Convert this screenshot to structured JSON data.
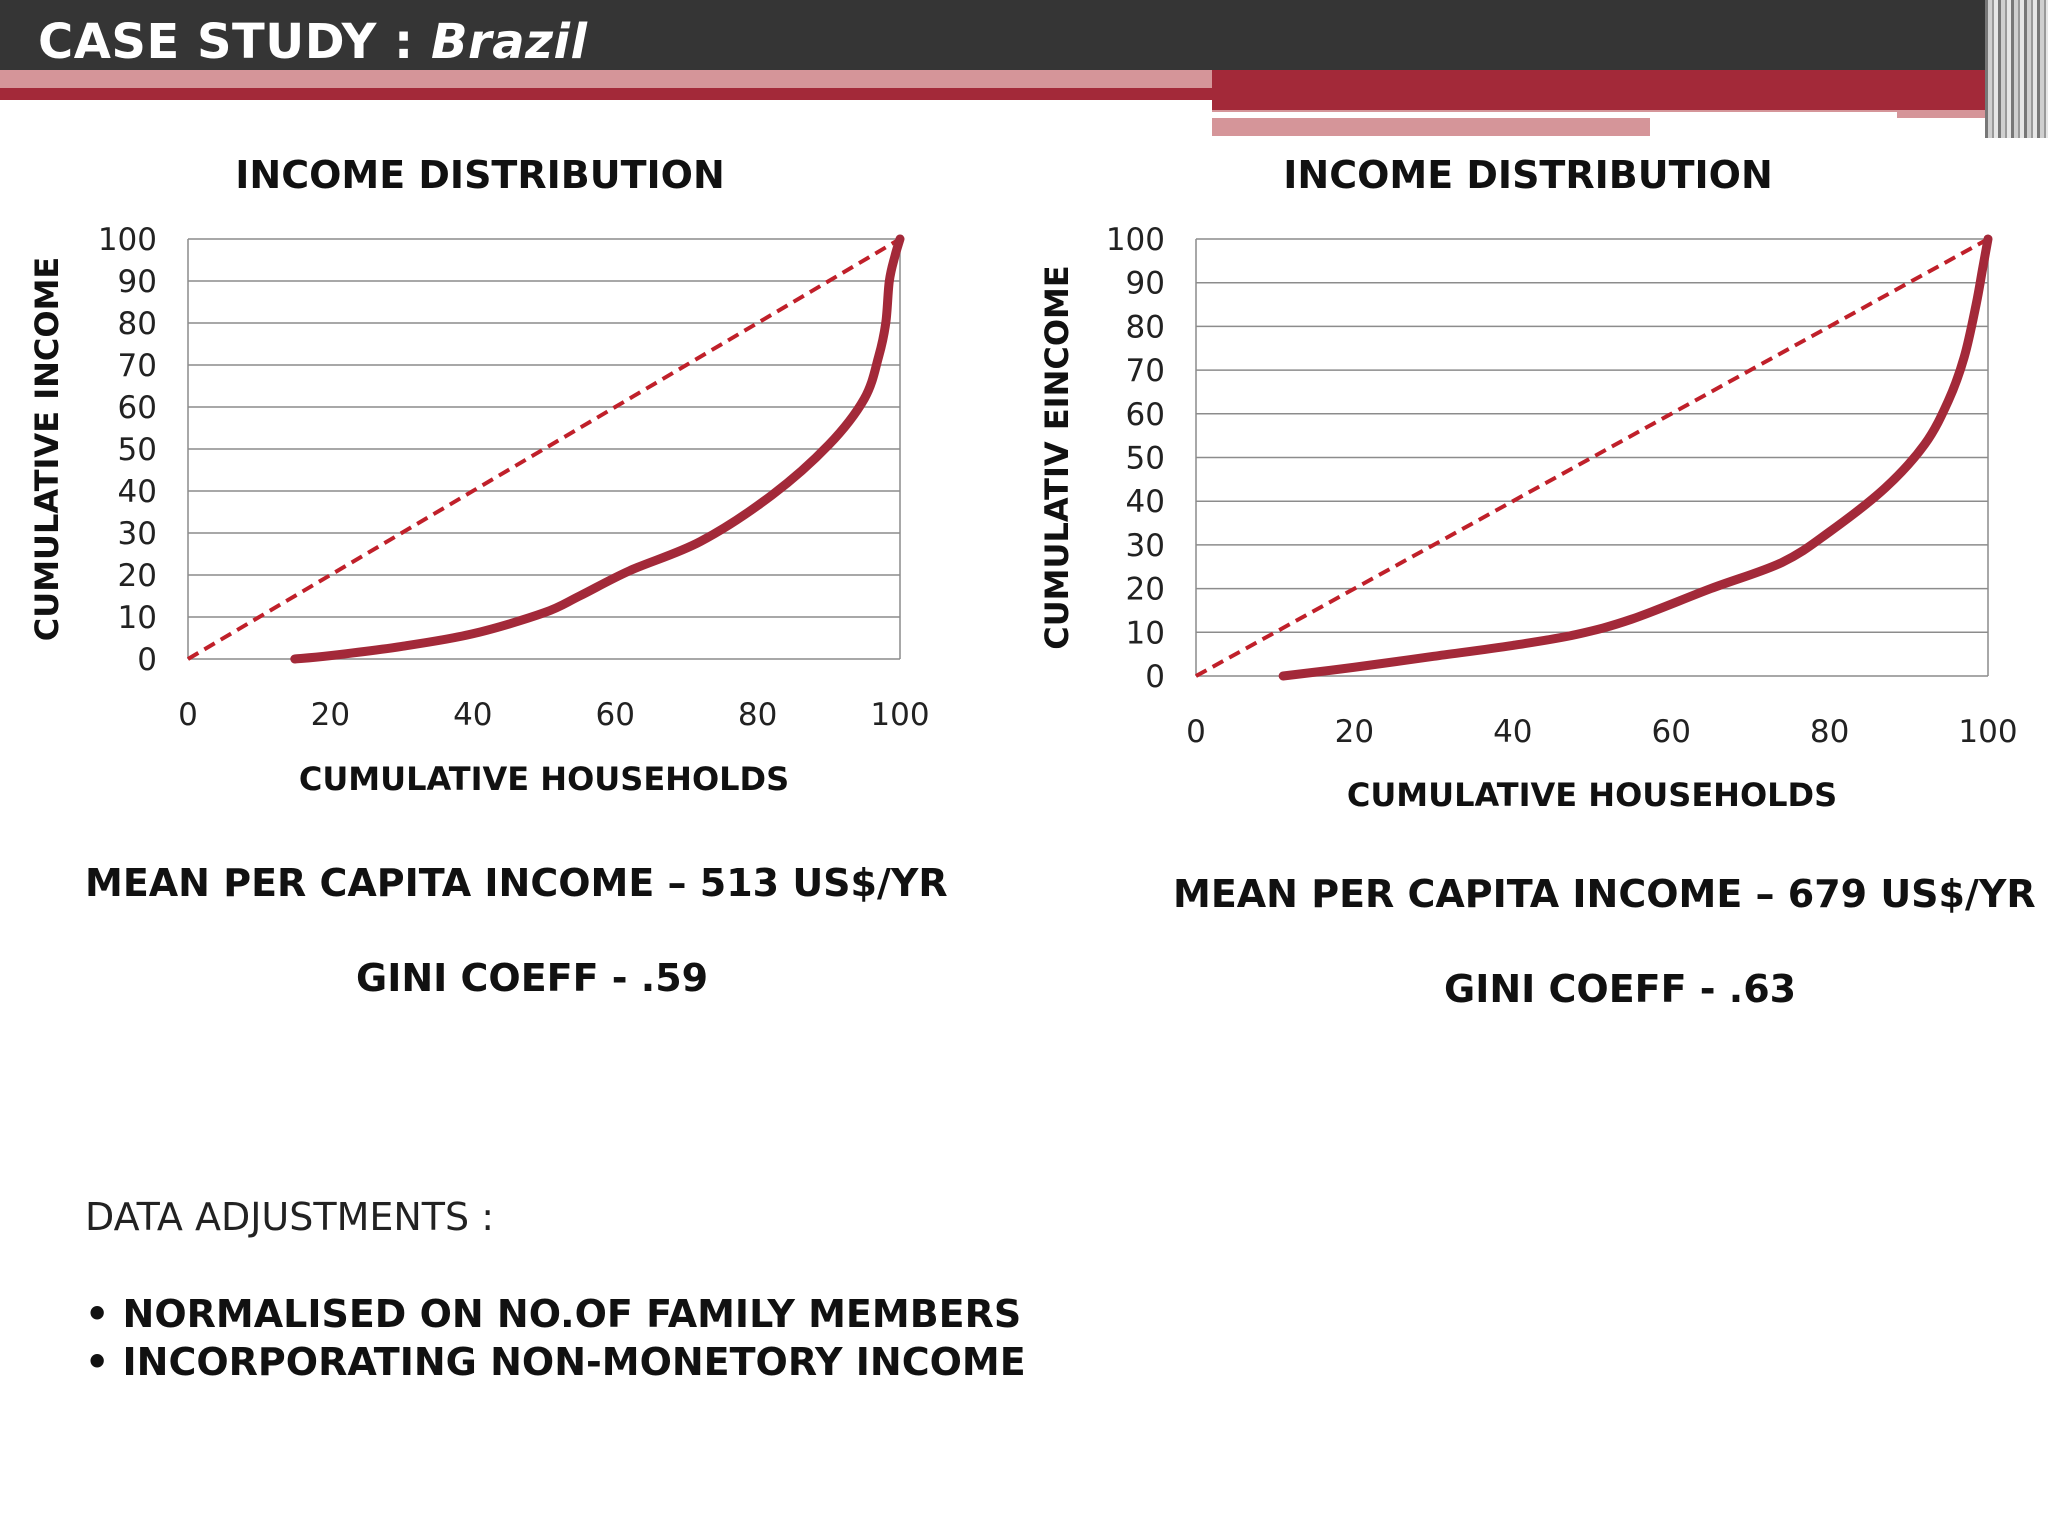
{
  "header": {
    "title_prefix": "CASE STUDY : ",
    "title_subject": "Brazil",
    "colors": {
      "bar": "#353535",
      "accent": "#a32939",
      "accent_light": "#d59599"
    }
  },
  "charts": [
    {
      "title": "INCOME DISTRIBUTION",
      "stats": {
        "mean_income": "MEAN PER CAPITA INCOME – 513 US$/YR",
        "gini": "GINI COEFF - .59"
      }
    },
    {
      "title": "INCOME DISTRIBUTION",
      "stats": {
        "mean_income": "MEAN PER CAPITA INCOME – 679 US$/YR",
        "gini": "GINI COEFF - .63"
      }
    }
  ],
  "chart_data": [
    {
      "type": "line",
      "title": "INCOME DISTRIBUTION",
      "xlabel": "CUMULATIVE HOUSEHOLDS",
      "ylabel": "CUMULATIVE INCOME",
      "xlim": [
        0,
        100
      ],
      "ylim": [
        0,
        100
      ],
      "xticks": [
        0,
        20,
        40,
        60,
        80,
        100
      ],
      "yticks": [
        0,
        10,
        20,
        30,
        40,
        50,
        60,
        70,
        80,
        90,
        100
      ],
      "grid": "horizontal",
      "series": [
        {
          "style": "dashed",
          "color": "#c0202a",
          "x": [
            0,
            100
          ],
          "y": [
            0,
            100
          ]
        },
        {
          "style": "solid",
          "color": "#a32939",
          "x": [
            15,
            20,
            30,
            40,
            50,
            55,
            62,
            72,
            82,
            90,
            95,
            97,
            98,
            98.5,
            99.3,
            100
          ],
          "y": [
            0,
            0.8,
            3,
            6,
            11,
            15,
            21,
            28,
            39,
            51,
            62,
            72,
            80,
            90,
            96,
            100
          ]
        }
      ]
    },
    {
      "type": "line",
      "title": "INCOME DISTRIBUTION",
      "xlabel": "CUMULATIVE HOUSEHOLDS",
      "ylabel": "CUMULATIV EINCOME",
      "xlim": [
        0,
        100
      ],
      "ylim": [
        0,
        100
      ],
      "xticks": [
        0,
        20,
        40,
        60,
        80,
        100
      ],
      "yticks": [
        0,
        10,
        20,
        30,
        40,
        50,
        60,
        70,
        80,
        90,
        100
      ],
      "grid": "horizontal",
      "series": [
        {
          "style": "dashed",
          "color": "#c0202a",
          "x": [
            0,
            100
          ],
          "y": [
            0,
            100
          ]
        },
        {
          "style": "solid",
          "color": "#a32939",
          "x": [
            11,
            20,
            30,
            40,
            48,
            55,
            65,
            74,
            80,
            87,
            92,
            95,
            97,
            98.5,
            99.3,
            100
          ],
          "y": [
            0,
            2,
            4.5,
            7,
            9.5,
            13,
            20,
            26,
            33,
            43,
            53,
            63,
            73,
            85,
            93,
            100
          ]
        }
      ]
    }
  ],
  "adjustments": {
    "heading": "DATA ADJUSTMENTS :",
    "items": [
      "NORMALISED ON NO.OF FAMILY MEMBERS",
      "INCORPORATING NON-MONETORY INCOME"
    ]
  }
}
